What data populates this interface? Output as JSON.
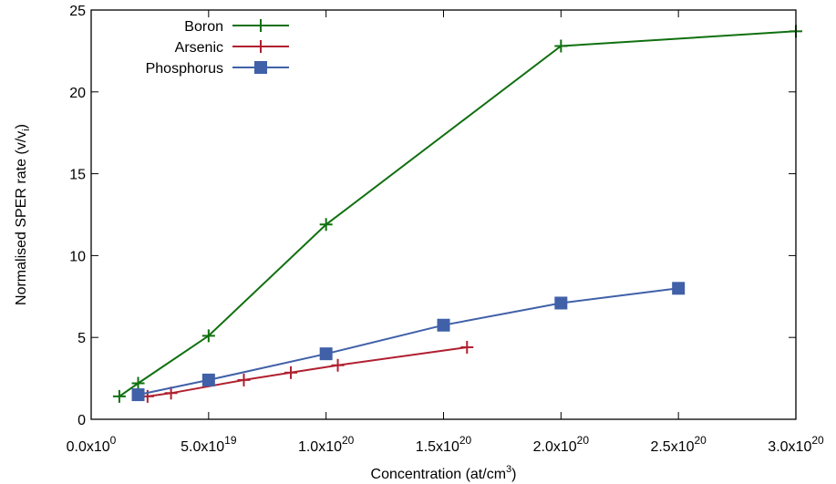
{
  "chart_data": {
    "type": "line",
    "xlabel_main": "Concentration (at/cm",
    "xlabel_sup": "3",
    "xlabel_end": ")",
    "ylabel_main": "Normalised SPER rate (v/v",
    "ylabel_sub": "i",
    "ylabel_end": ")",
    "xlim": [
      0,
      3e+20
    ],
    "ylim": [
      0,
      25
    ],
    "x_ticks": [
      {
        "value": 0,
        "mantissa": "0.0x10",
        "exp": "0"
      },
      {
        "value": 5e+19,
        "mantissa": "5.0x10",
        "exp": "19"
      },
      {
        "value": 1e+20,
        "mantissa": "1.0x10",
        "exp": "20"
      },
      {
        "value": 1.5e+20,
        "mantissa": "1.5x10",
        "exp": "20"
      },
      {
        "value": 2e+20,
        "mantissa": "2.0x10",
        "exp": "20"
      },
      {
        "value": 2.5e+20,
        "mantissa": "2.5x10",
        "exp": "20"
      },
      {
        "value": 3e+20,
        "mantissa": "3.0x10",
        "exp": "20"
      }
    ],
    "y_ticks": [
      0,
      5,
      10,
      15,
      20,
      25
    ],
    "legend_position": "top-left",
    "series": [
      {
        "name": "Boron",
        "color": "#107010",
        "marker": "plus",
        "x": [
          1.2e+19,
          2e+19,
          5e+19,
          1e+20,
          2e+20,
          3e+20
        ],
        "y": [
          1.4,
          2.2,
          5.1,
          11.9,
          22.8,
          23.7
        ]
      },
      {
        "name": "Arsenic",
        "color": "#b02030",
        "marker": "plus",
        "x": [
          2.4e+19,
          3.4e+19,
          6.5e+19,
          8.5e+19,
          1.05e+20,
          1.6e+20
        ],
        "y": [
          1.4,
          1.6,
          2.4,
          2.85,
          3.3,
          4.4
        ]
      },
      {
        "name": "Phosphorus",
        "color": "#4060a8",
        "marker": "square",
        "x": [
          2e+19,
          5e+19,
          1e+20,
          1.5e+20,
          2e+20,
          2.5e+20
        ],
        "y": [
          1.5,
          2.4,
          4.0,
          5.75,
          7.1,
          8.0
        ]
      }
    ]
  }
}
